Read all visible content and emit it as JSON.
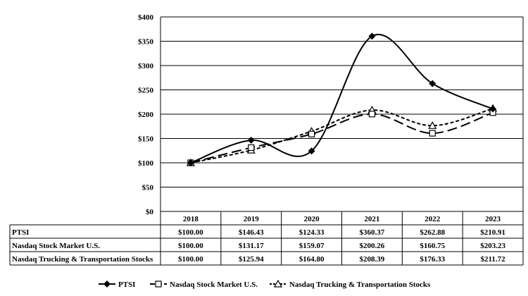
{
  "chart_data": {
    "type": "line",
    "title": "",
    "xlabel": "",
    "ylabel": "",
    "ylim": [
      0,
      400
    ],
    "yticks": [
      "$0",
      "$50",
      "$100",
      "$150",
      "$200",
      "$250",
      "$300",
      "$350",
      "$400"
    ],
    "categories": [
      "2018",
      "2019",
      "2020",
      "2021",
      "2022",
      "2023"
    ],
    "grid": true,
    "legend_position": "bottom",
    "series": [
      {
        "name": "PTSI",
        "values": [
          100.0,
          146.43,
          124.33,
          360.37,
          262.88,
          210.91
        ],
        "labels": [
          "$100.00",
          "$146.43",
          "$124.33",
          "$360.37",
          "$262.88",
          "$210.91"
        ],
        "style": "solid",
        "marker": "diamond",
        "color": "#000000"
      },
      {
        "name": "Nasdaq Stock Market U.S.",
        "values": [
          100.0,
          131.17,
          159.07,
          200.26,
          160.75,
          203.23
        ],
        "labels": [
          "$100.00",
          "$131.17",
          "$159.07",
          "$200.26",
          "$160.75",
          "$203.23"
        ],
        "style": "long-dash",
        "marker": "square",
        "color": "#000000"
      },
      {
        "name": "Nasdaq Trucking & Transportation Stocks",
        "values": [
          100.0,
          125.94,
          164.8,
          208.39,
          176.33,
          211.72
        ],
        "labels": [
          "$100.00",
          "$125.94",
          "$164.80",
          "$208.39",
          "$176.33",
          "$211.72"
        ],
        "style": "short-dash",
        "marker": "triangle",
        "color": "#000000"
      }
    ]
  }
}
